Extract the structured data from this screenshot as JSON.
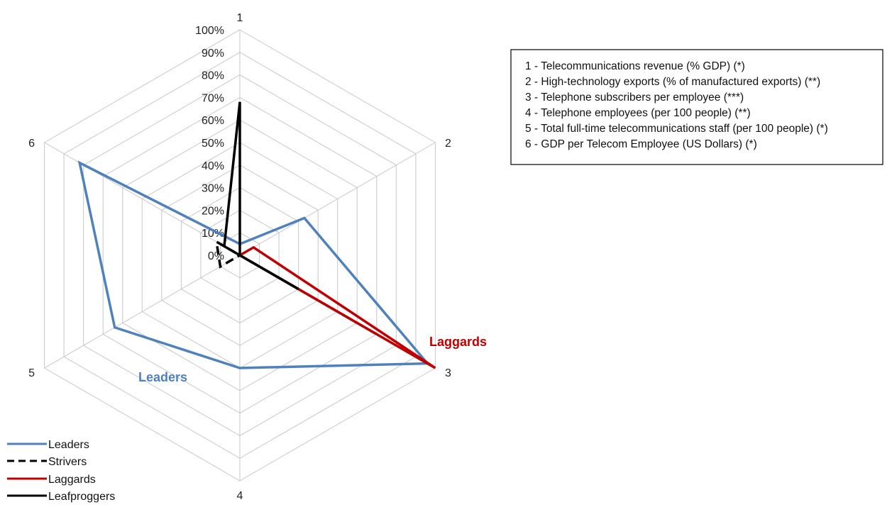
{
  "chart_data": {
    "type": "radar",
    "axes": [
      "1",
      "2",
      "3",
      "4",
      "5",
      "6"
    ],
    "axis_descriptions": [
      "1 - Telecommunications revenue (% GDP) (*)",
      "2 - High-technology exports (% of manufactured exports) (**)",
      "3 - Telephone subscribers per employee (***)",
      "4 - Telephone employees (per 100 people) (**)",
      "5 - Total full-time telecommunications staff  (per 100 people) (*)",
      "6 - GDP per Telecom Employee (US Dollars) (*)"
    ],
    "tick_labels": [
      "0%",
      "10%",
      "20%",
      "30%",
      "40%",
      "50%",
      "60%",
      "70%",
      "80%",
      "90%",
      "100%"
    ],
    "range": [
      0,
      100
    ],
    "series": [
      {
        "name": "Leaders",
        "values": [
          5,
          33,
          96,
          50,
          64,
          82
        ],
        "color": "#4f81bd",
        "dash": "solid"
      },
      {
        "name": "Strivers",
        "values": [
          0,
          0,
          70,
          0,
          10,
          12
        ],
        "color": "#000000",
        "dash": "dashed"
      },
      {
        "name": "Laggards",
        "values": [
          0,
          7,
          100,
          0,
          0,
          0
        ],
        "color": "#c00000",
        "dash": "solid"
      },
      {
        "name": "Leafproggers",
        "values": [
          68,
          0,
          30,
          0,
          0,
          8
        ],
        "color": "#000000",
        "dash": "solid"
      }
    ],
    "annotations": [
      {
        "text": "Leaders",
        "color": "#4f81bd"
      },
      {
        "text": "Laggards",
        "color": "#c00000"
      }
    ],
    "legend_position": "bottom-left"
  }
}
